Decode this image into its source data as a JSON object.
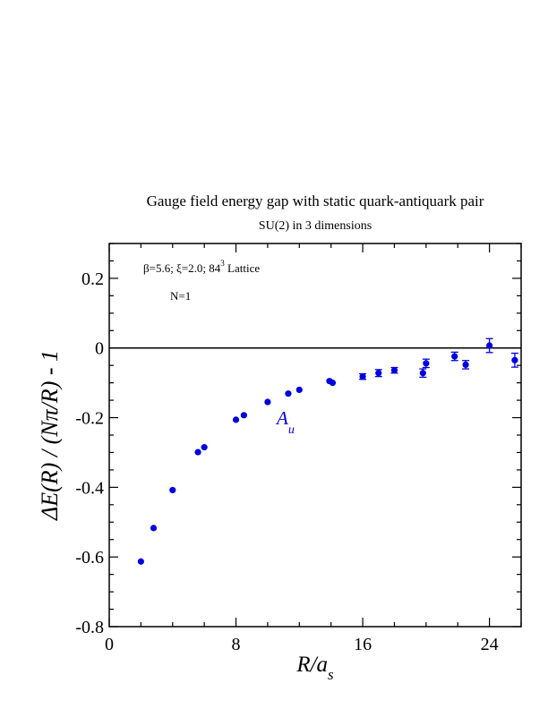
{
  "chart_data": {
    "type": "scatter",
    "title": "Gauge field energy gap with static quark-antiquark pair",
    "subtitle": "SU(2) in 3 dimensions",
    "xlabel": "R/a",
    "xlabel_sub": "s",
    "ylabel": "ΔE(R) / (Nπ/R) - 1",
    "xlim": [
      0,
      26
    ],
    "ylim": [
      -0.8,
      0.3
    ],
    "x_ticks": [
      "0",
      "8",
      "16",
      "24"
    ],
    "y_ticks": [
      "-0.8",
      "-0.6",
      "-0.4",
      "-0.2",
      "0",
      "0.2"
    ],
    "x_tick_values": [
      0,
      8,
      16,
      24
    ],
    "y_tick_values": [
      -0.8,
      -0.6,
      -0.4,
      -0.2,
      0,
      0.2
    ],
    "grid": false,
    "reference_line_y": 0,
    "annotations": {
      "params_main": "β=5.6;  ξ=2.0; 84",
      "params_sup": "3",
      "params_tail": " Lattice",
      "n_label": "N=1",
      "series_label": "A",
      "series_label_sub": "u"
    },
    "colors": {
      "points": "#0000e0",
      "axes": "#000000"
    },
    "series": [
      {
        "name": "A_u",
        "points": [
          {
            "x": 2.0,
            "y": -0.613,
            "err": 0.004
          },
          {
            "x": 2.8,
            "y": -0.517,
            "err": 0.004
          },
          {
            "x": 4.0,
            "y": -0.408,
            "err": 0.004
          },
          {
            "x": 5.6,
            "y": -0.299,
            "err": 0.004
          },
          {
            "x": 6.0,
            "y": -0.285,
            "err": 0.004
          },
          {
            "x": 8.0,
            "y": -0.206,
            "err": 0.004
          },
          {
            "x": 8.5,
            "y": -0.193,
            "err": 0.004
          },
          {
            "x": 10.0,
            "y": -0.155,
            "err": 0.005
          },
          {
            "x": 11.3,
            "y": -0.131,
            "err": 0.005
          },
          {
            "x": 12.0,
            "y": -0.12,
            "err": 0.005
          },
          {
            "x": 13.9,
            "y": -0.095,
            "err": 0.006
          },
          {
            "x": 14.1,
            "y": -0.1,
            "err": 0.006
          },
          {
            "x": 16.0,
            "y": -0.082,
            "err": 0.008
          },
          {
            "x": 17.0,
            "y": -0.072,
            "err": 0.01
          },
          {
            "x": 18.0,
            "y": -0.064,
            "err": 0.008
          },
          {
            "x": 19.8,
            "y": -0.072,
            "err": 0.012
          },
          {
            "x": 20.0,
            "y": -0.044,
            "err": 0.012
          },
          {
            "x": 21.8,
            "y": -0.024,
            "err": 0.012
          },
          {
            "x": 22.5,
            "y": -0.048,
            "err": 0.012
          },
          {
            "x": 24.0,
            "y": 0.007,
            "err": 0.02
          },
          {
            "x": 25.6,
            "y": -0.035,
            "err": 0.02
          }
        ]
      }
    ]
  }
}
